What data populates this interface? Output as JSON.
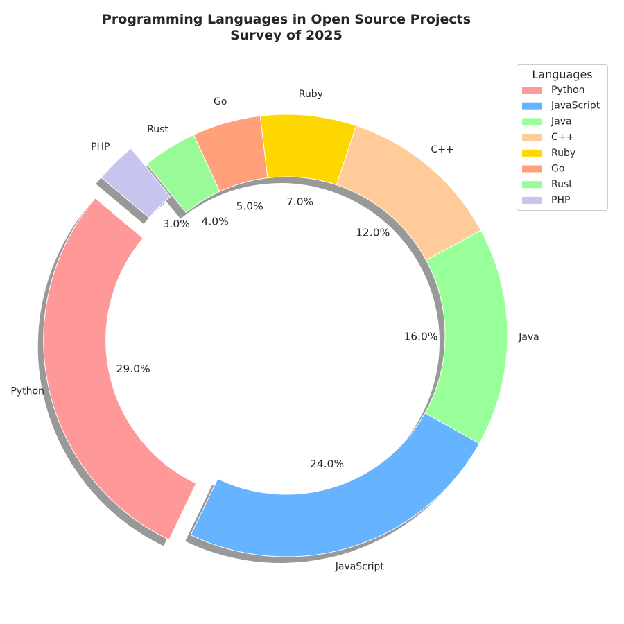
{
  "chart_data": {
    "type": "pie",
    "variant": "donut",
    "title": "Programming Languages in Open Source Projects",
    "subtitle": "Survey of 2025",
    "categories": [
      "Python",
      "JavaScript",
      "Java",
      "C++",
      "Ruby",
      "Go",
      "Rust",
      "PHP"
    ],
    "values": [
      29.0,
      24.0,
      16.0,
      12.0,
      7.0,
      5.0,
      4.0,
      3.0
    ],
    "value_labels": [
      "29.0%",
      "24.0%",
      "16.0%",
      "12.0%",
      "7.0%",
      "5.0%",
      "4.0%",
      "3.0%"
    ],
    "colors": [
      "#ff9999",
      "#66b3ff",
      "#99ff99",
      "#ffcc99",
      "#ffd700",
      "#ffa07a",
      "#98fb98",
      "#c5c5f0"
    ],
    "exploded": [
      "Python",
      "PHP"
    ],
    "shadow": true,
    "legend_title": "Languages",
    "legend_position": "upper right"
  }
}
